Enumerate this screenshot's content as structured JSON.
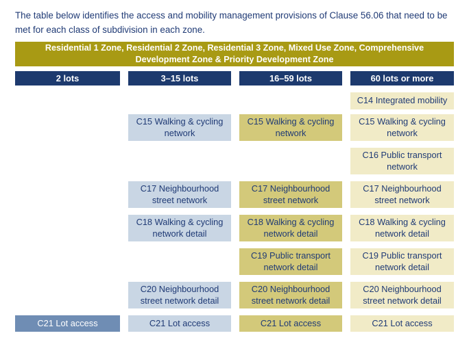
{
  "intro": "The table below identifies the access and mobility management provisions of Clause 56.06 that need to be met for each class of subdivision in each zone.",
  "banner": {
    "line1": "Residential 1 Zone, Residential 2 Zone, Residential 3 Zone, Mixed Use Zone, Comprehensive",
    "line2": "Development Zone & Priority Development Zone"
  },
  "columns": [
    "2 lots",
    "3–15 lots",
    "16–59 lots",
    "60 lots or more"
  ],
  "cells": {
    "c14_60": [
      "C14 Integrated mobility"
    ],
    "c15_3": [
      "C15 Walking & cycling",
      "network"
    ],
    "c15_16": [
      "C15 Walking & cycling",
      "network"
    ],
    "c15_60": [
      "C15 Walking & cycling",
      "network"
    ],
    "c16_60": [
      "C16 Public transport",
      "network"
    ],
    "c17_3": [
      "C17 Neighbourhood",
      "street network"
    ],
    "c17_16": [
      "C17 Neighbourhood",
      "street network"
    ],
    "c17_60": [
      "C17 Neighbourhood",
      "street network"
    ],
    "c18_3": [
      "C18 Walking & cycling",
      "network detail"
    ],
    "c18_16": [
      "C18 Walking & cycling",
      "network detail"
    ],
    "c18_60": [
      "C18 Walking & cycling",
      "network detail"
    ],
    "c19_16": [
      "C19 Public transport",
      "network detail"
    ],
    "c19_60": [
      "C19 Public transport",
      "network detail"
    ],
    "c20_3": [
      "C20 Neighbourhood",
      "street network detail"
    ],
    "c20_16": [
      "C20 Neighbourhood",
      "street network detail"
    ],
    "c20_60": [
      "C20 Neighbourhood",
      "street network detail"
    ],
    "c21_2": [
      "C21 Lot access"
    ],
    "c21_3": [
      "C21 Lot access"
    ],
    "c21_16": [
      "C21 Lot access"
    ],
    "c21_60": [
      "C21 Lot access"
    ]
  },
  "colors": {
    "banner": "#a89a14",
    "header": "#1d3a6e",
    "col_2_lots": "#6f8db4",
    "col_3_15": "#c9d6e4",
    "col_16_59": "#d3c97a",
    "col_60_plus": "#f1ebc7"
  }
}
